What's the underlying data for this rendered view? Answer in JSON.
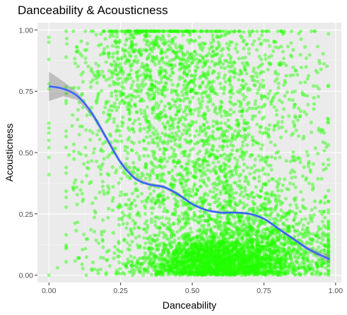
{
  "chart_data": {
    "type": "scatter",
    "title": "Danceability & Acousticness",
    "xlabel": "Danceability",
    "ylabel": "Acousticness",
    "xlim": [
      -0.04,
      1.02
    ],
    "ylim": [
      -0.03,
      1.03
    ],
    "x_ticks": [
      "0.00",
      "0.25",
      "0.50",
      "0.75",
      "1.00"
    ],
    "y_ticks": [
      "0.00",
      "0.25",
      "0.50",
      "0.75",
      "1.00"
    ],
    "grid": true,
    "point_color": "#22ff00",
    "point_opacity": 0.45,
    "smooth_color": "#3366ff",
    "band_color": "#999999",
    "panel_background": "#ebebeb",
    "density_clusters": [
      {
        "cx": 0.58,
        "cy": 0.05,
        "sx": 0.13,
        "sy": 0.05,
        "n": 1700
      },
      {
        "cx": 0.7,
        "cy": 0.12,
        "sx": 0.15,
        "sy": 0.1,
        "n": 1100
      },
      {
        "cx": 0.55,
        "cy": 0.35,
        "sx": 0.18,
        "sy": 0.2,
        "n": 800
      },
      {
        "cx": 0.48,
        "cy": 0.85,
        "sx": 0.18,
        "sy": 0.13,
        "n": 650
      },
      {
        "cx": 0.52,
        "cy": 0.55,
        "sx": 0.22,
        "sy": 0.25,
        "n": 500
      },
      {
        "cx": 0.3,
        "cy": 0.85,
        "sx": 0.08,
        "sy": 0.15,
        "n": 200
      }
    ],
    "uniform_background_points": 700,
    "smooth_line": {
      "x": [
        0.0,
        0.05,
        0.1,
        0.15,
        0.2,
        0.25,
        0.3,
        0.35,
        0.4,
        0.45,
        0.5,
        0.55,
        0.6,
        0.65,
        0.7,
        0.75,
        0.8,
        0.85,
        0.9,
        0.95,
        0.98
      ],
      "y": [
        0.77,
        0.76,
        0.73,
        0.66,
        0.56,
        0.46,
        0.395,
        0.37,
        0.36,
        0.33,
        0.29,
        0.265,
        0.255,
        0.255,
        0.25,
        0.23,
        0.19,
        0.15,
        0.11,
        0.08,
        0.065
      ],
      "upper": [
        0.83,
        0.79,
        0.745,
        0.672,
        0.572,
        0.47,
        0.403,
        0.377,
        0.367,
        0.336,
        0.295,
        0.27,
        0.26,
        0.26,
        0.255,
        0.235,
        0.196,
        0.157,
        0.119,
        0.092,
        0.083
      ],
      "lower": [
        0.71,
        0.73,
        0.715,
        0.648,
        0.548,
        0.45,
        0.387,
        0.363,
        0.353,
        0.324,
        0.285,
        0.26,
        0.25,
        0.25,
        0.245,
        0.225,
        0.184,
        0.143,
        0.101,
        0.068,
        0.047
      ]
    }
  }
}
